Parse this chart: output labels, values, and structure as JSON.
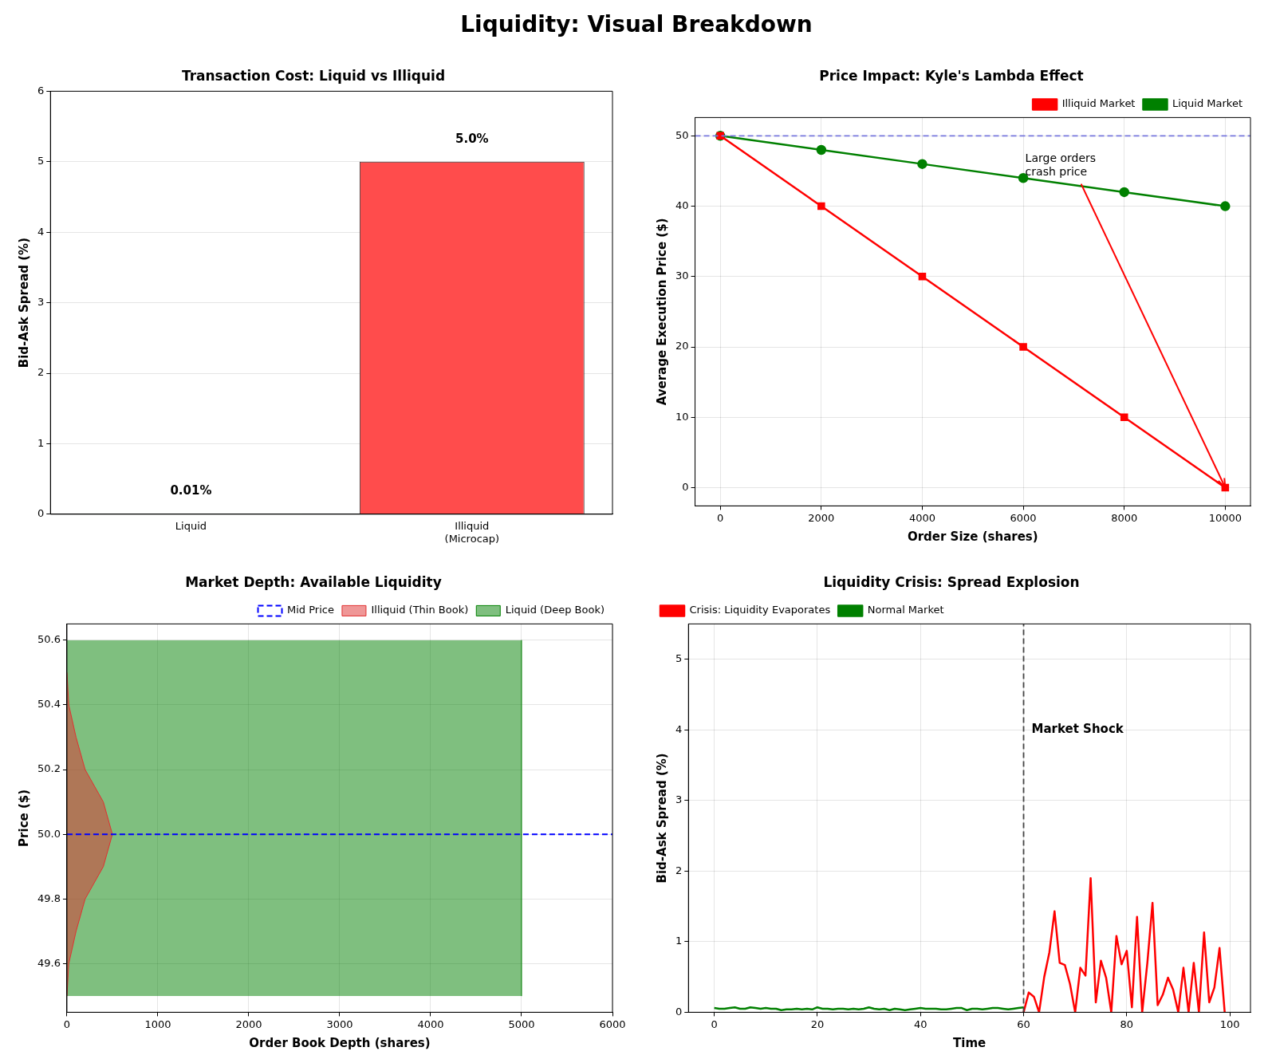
{
  "chart_data": [
    {
      "type": "other",
      "title": "Liquidity: Visual Breakdown"
    },
    {
      "type": "bar",
      "title": "Transaction Cost: Liquid vs Illiquid",
      "ylabel": "Bid-Ask Spread (%)",
      "categories": [
        "Liquid",
        "Illiquid\n(Microcap)"
      ],
      "values": [
        0.01,
        5.0
      ],
      "colors": [
        "#4ca64c",
        "#ff4c4c"
      ],
      "value_labels": [
        "0.01%",
        "5.0%"
      ],
      "ylim": [
        0,
        6
      ],
      "yticks": [
        0,
        1,
        2,
        3,
        4,
        5,
        6
      ],
      "grid": "y"
    },
    {
      "type": "line",
      "title": "Price Impact: Kyle's Lambda Effect",
      "xlabel": "Order Size (shares)",
      "ylabel": "Average Execution Price ($)",
      "xlim": [
        -500,
        10500
      ],
      "xticks": [
        0,
        2000,
        4000,
        6000,
        8000,
        10000
      ],
      "ylim": [
        -2.6,
        52.6
      ],
      "yticks": [
        0,
        10,
        20,
        30,
        40,
        50
      ],
      "grid": true,
      "legend": "top right",
      "series": [
        {
          "name": "Liquid Market",
          "color": "#008000",
          "marker": "circle",
          "x": [
            0,
            2000,
            4000,
            6000,
            8000,
            10000
          ],
          "values": [
            50,
            48,
            46,
            44,
            42,
            40
          ]
        },
        {
          "name": "Illiquid Market",
          "color": "#ff0000",
          "marker": "square",
          "x": [
            0,
            2000,
            4000,
            6000,
            8000,
            10000
          ],
          "values": [
            50,
            40,
            30,
            20,
            10,
            0
          ]
        }
      ],
      "ref_lines": [
        {
          "axis": "y",
          "value": 50,
          "color": "#7777dd",
          "line_style": "dashed"
        }
      ],
      "annotations": [
        {
          "text": "Large orders\ncrash price",
          "x": 10000,
          "y": 0
        }
      ]
    },
    {
      "type": "area",
      "orientation": "horizontal",
      "title": "Market Depth: Available Liquidity",
      "xlabel": "Order Book Depth (shares)",
      "ylabel": "Price ($)",
      "xlim": [
        0,
        6000
      ],
      "xticks": [
        0,
        1000,
        2000,
        3000,
        4000,
        5000,
        6000
      ],
      "ylim": [
        49.45,
        50.65
      ],
      "yticks": [
        49.6,
        49.8,
        {
          "value": 50,
          "label": "50.0"
        },
        50.2,
        50.4,
        50.6
      ],
      "grid": true,
      "legend": "top right",
      "series": [
        {
          "name": "Liquid (Deep Book)",
          "color": "#008000",
          "x": [
            49.5,
            50.6
          ],
          "values": [
            5000,
            5000
          ]
        },
        {
          "name": "Illiquid (Thin Book)",
          "color": "#e03030",
          "x": [
            49.5,
            49.6,
            49.7,
            49.8,
            49.9,
            50.0,
            50.1,
            50.2,
            50.3,
            50.4,
            50.5
          ],
          "values": [
            0,
            20,
            100,
            200,
            400,
            500,
            400,
            200,
            100,
            20,
            0
          ]
        }
      ],
      "ref_lines": [
        {
          "axis": "y",
          "value": 50,
          "label": "Mid Price",
          "color": "#0000ff",
          "line_style": "dashed"
        }
      ]
    },
    {
      "type": "line",
      "title": "Liquidity Crisis: Spread Explosion",
      "xlabel": "Time",
      "ylabel": "Bid-Ask Spread (%)",
      "xlim": [
        -5,
        104
      ],
      "xticks": [
        0,
        20,
        40,
        60,
        80,
        100
      ],
      "ylim": [
        0,
        5.5
      ],
      "yticks": [
        0,
        1,
        2,
        3,
        4,
        5
      ],
      "grid": true,
      "legend": "top left",
      "series": [
        {
          "name": "Normal Market",
          "color": "#008000",
          "x": [
            0,
            1,
            2,
            3,
            4,
            5,
            6,
            7,
            8,
            9,
            10,
            11,
            12,
            13,
            14,
            15,
            16,
            17,
            18,
            19,
            20,
            21,
            22,
            23,
            24,
            25,
            26,
            27,
            28,
            29,
            30,
            31,
            32,
            33,
            34,
            35,
            36,
            37,
            38,
            39,
            40,
            41,
            42,
            43,
            44,
            45,
            46,
            47,
            48,
            49,
            50,
            51,
            52,
            53,
            54,
            55,
            56,
            57,
            58,
            59,
            60
          ],
          "values": [
            0.06,
            0.05,
            0.05,
            0.06,
            0.07,
            0.05,
            0.05,
            0.07,
            0.06,
            0.05,
            0.06,
            0.05,
            0.05,
            0.03,
            0.04,
            0.04,
            0.05,
            0.04,
            0.05,
            0.04,
            0.07,
            0.05,
            0.05,
            0.04,
            0.05,
            0.05,
            0.04,
            0.05,
            0.04,
            0.05,
            0.07,
            0.05,
            0.04,
            0.05,
            0.03,
            0.05,
            0.04,
            0.03,
            0.04,
            0.05,
            0.06,
            0.05,
            0.05,
            0.05,
            0.04,
            0.04,
            0.05,
            0.06,
            0.06,
            0.03,
            0.05,
            0.05,
            0.04,
            0.05,
            0.06,
            0.06,
            0.05,
            0.04,
            0.05,
            0.06,
            0.07
          ]
        },
        {
          "name": "Crisis: Liquidity Evaporates",
          "color": "#ff0000",
          "x": [
            60,
            61,
            62,
            63,
            64,
            65,
            66,
            67,
            68,
            69,
            70,
            71,
            72,
            73,
            74,
            75,
            76,
            77,
            78,
            79,
            80,
            81,
            82,
            83,
            84,
            85,
            86,
            87,
            88,
            89,
            90,
            91,
            92,
            93,
            94,
            95,
            96,
            97,
            98,
            99
          ],
          "values": [
            0,
            0.28,
            0.22,
            0,
            0.5,
            0.85,
            1.43,
            0.7,
            0.67,
            0.4,
            0,
            0.63,
            0.52,
            1.9,
            0.14,
            0.73,
            0.49,
            0,
            1.08,
            0.68,
            0.87,
            0.07,
            1.35,
            0,
            0.7,
            1.55,
            0.1,
            0.25,
            0.49,
            0.32,
            0,
            0.63,
            0,
            0.7,
            0,
            1.13,
            0.14,
            0.35,
            0.91,
            0
          ]
        }
      ],
      "ref_lines": [
        {
          "axis": "x",
          "value": 60,
          "color": "#444444",
          "line_style": "dashed"
        }
      ],
      "annotations": [
        {
          "text": "Market Shock",
          "x": 60,
          "y": 4
        }
      ]
    }
  ]
}
